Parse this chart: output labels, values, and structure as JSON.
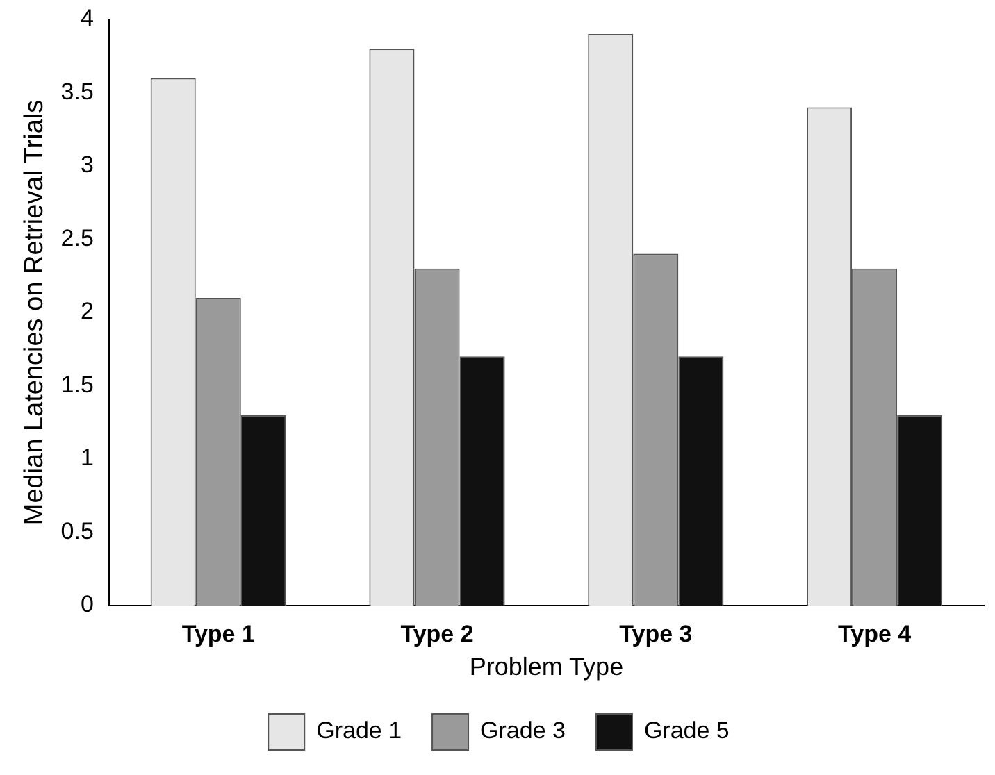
{
  "chart_data": {
    "type": "bar",
    "xlabel": "Problem Type",
    "ylabel": "Median Latencies on Retrieval Trials",
    "categories": [
      "Type 1",
      "Type 2",
      "Type 3",
      "Type 4"
    ],
    "series": [
      {
        "name": "Grade 1",
        "color": "#e6e6e6",
        "values": [
          3.6,
          3.8,
          3.9,
          3.4
        ]
      },
      {
        "name": "Grade 3",
        "color": "#9a9a9a",
        "values": [
          2.1,
          2.3,
          2.4,
          2.3
        ]
      },
      {
        "name": "Grade 5",
        "color": "#111111",
        "values": [
          1.3,
          1.7,
          1.7,
          1.3
        ]
      }
    ],
    "ylim": [
      0,
      4
    ],
    "yticks": [
      0,
      0.5,
      1,
      1.5,
      2,
      2.5,
      3,
      3.5,
      4
    ],
    "grid": false,
    "legend": "bottom"
  }
}
